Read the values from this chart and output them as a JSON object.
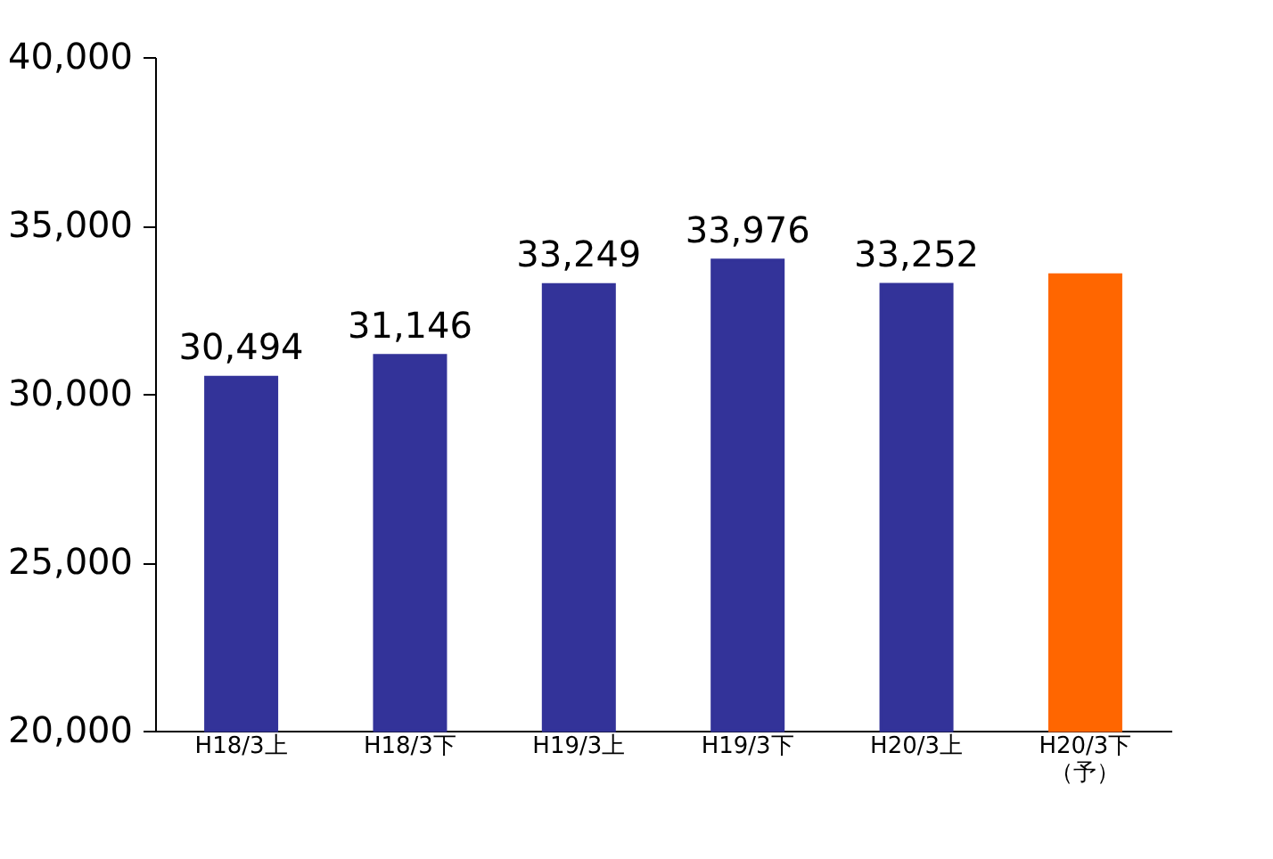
{
  "chart_data": {
    "type": "bar",
    "categories": [
      "H18/3上",
      "H18/3下",
      "H19/3上",
      "H19/3下",
      "H20/3上",
      "H20/3下（予）"
    ],
    "values": [
      30494,
      31146,
      33249,
      33976,
      33252,
      33540
    ],
    "colors": [
      "#333399",
      "#333399",
      "#333399",
      "#333399",
      "#333399",
      "#ff6600"
    ],
    "value_labels": [
      "30,494",
      "31,146",
      "33,249",
      "33,976",
      "33,252",
      null
    ],
    "ylim": [
      20000,
      40000
    ],
    "yticks": [
      {
        "value": 20000,
        "label": "20,000"
      },
      {
        "value": 25000,
        "label": "25,000"
      },
      {
        "value": 30000,
        "label": "30,000"
      },
      {
        "value": 35000,
        "label": "35,000"
      },
      {
        "value": 40000,
        "label": "40,000"
      }
    ],
    "grid": false
  }
}
